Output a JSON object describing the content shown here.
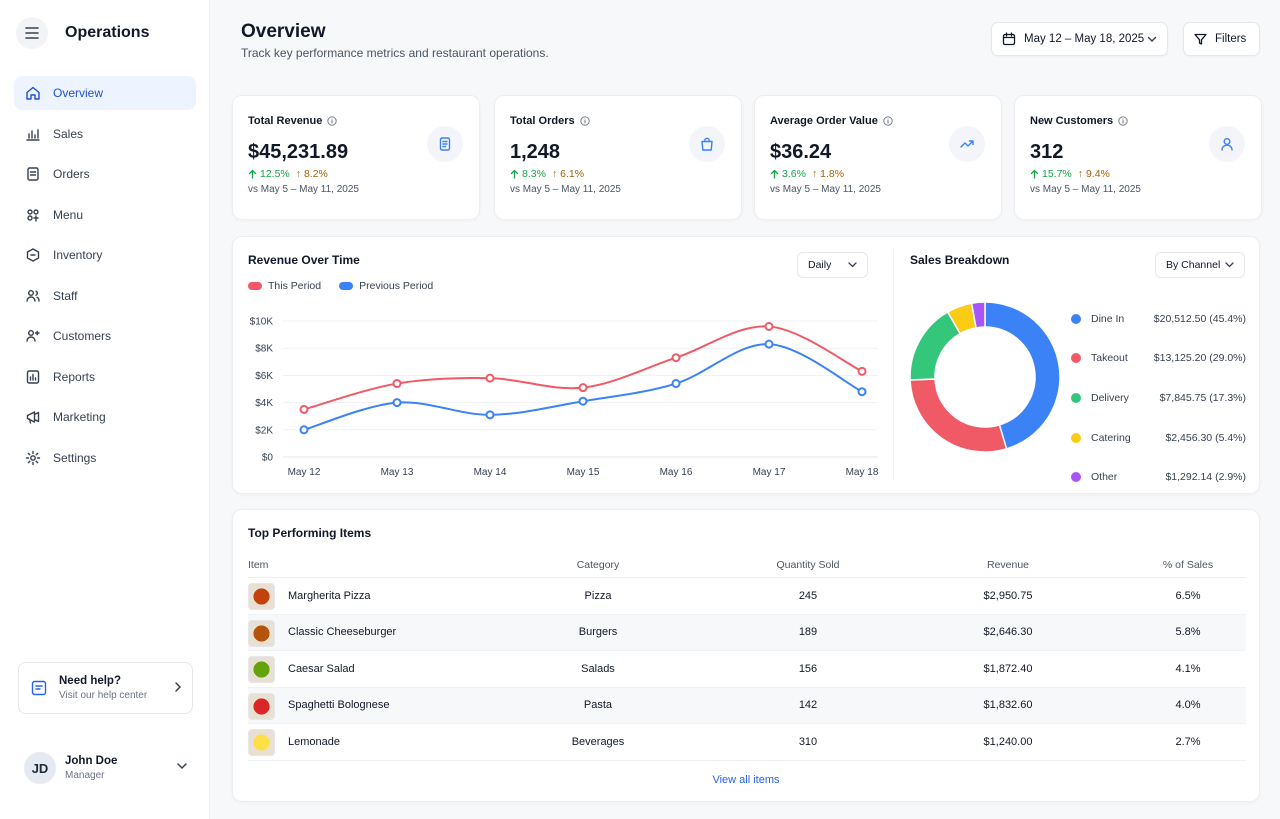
{
  "app": {
    "title": "Operations"
  },
  "nav": {
    "items": [
      {
        "label": "Overview",
        "icon": "home-icon",
        "active": true
      },
      {
        "label": "Sales",
        "icon": "bar-chart-icon"
      },
      {
        "label": "Orders",
        "icon": "document-icon"
      },
      {
        "label": "Menu",
        "icon": "utensils-icon"
      },
      {
        "label": "Inventory",
        "icon": "box-icon"
      },
      {
        "label": "Staff",
        "icon": "users-icon"
      },
      {
        "label": "Customers",
        "icon": "customers-icon"
      },
      {
        "label": "Reports",
        "icon": "report-icon"
      },
      {
        "label": "Marketing",
        "icon": "megaphone-icon"
      },
      {
        "label": "Settings",
        "icon": "gear-icon"
      }
    ]
  },
  "help": {
    "title": "Need help?",
    "subtitle": "Visit our help center"
  },
  "user": {
    "initials": "JD",
    "name": "John Doe",
    "role": "Manager"
  },
  "header": {
    "title": "Overview",
    "subtitle": "Track key performance metrics and restaurant operations.",
    "date_range": "May 12 – May 18, 2025",
    "filters_label": "Filters"
  },
  "kpis": [
    {
      "label": "Total Revenue",
      "value": "$45,231.89",
      "delta": "12.5%",
      "prev_delta": "8.2%",
      "period": "vs May 5 – May 11, 2025",
      "icon": "receipt-icon"
    },
    {
      "label": "Total Orders",
      "value": "1,248",
      "delta": "8.3%",
      "prev_delta": "6.1%",
      "period": "vs May 5 – May 11, 2025",
      "icon": "shopping-bag-icon"
    },
    {
      "label": "Average Order Value",
      "value": "$36.24",
      "delta": "3.6%",
      "prev_delta": "1.8%",
      "period": "vs May 5 – May 11, 2025",
      "icon": "trend-up-icon"
    },
    {
      "label": "New Customers",
      "value": "312",
      "delta": "15.7%",
      "prev_delta": "9.4%",
      "period": "vs May 5 – May 11, 2025",
      "icon": "user-icon"
    }
  ],
  "revenue": {
    "title": "Revenue Over Time",
    "granularity": "Daily"
  },
  "breakdown": {
    "title": "Sales Breakdown",
    "mode": "By Channel",
    "items": [
      {
        "name": "Dine In",
        "value": "$20,512.50 (45.4%)",
        "color": "#3b82f6"
      },
      {
        "name": "Takeout",
        "value": "$13,125.20 (29.0%)",
        "color": "#f05a67"
      },
      {
        "name": "Delivery",
        "value": "$7,845.75 (17.3%)",
        "color": "#34c77b"
      },
      {
        "name": "Catering",
        "value": "$2,456.30 (5.4%)",
        "color": "#facc15"
      },
      {
        "name": "Other",
        "value": "$1,292.14 (2.9%)",
        "color": "#a855f7"
      }
    ]
  },
  "table": {
    "title": "Top Performing Items",
    "headers": {
      "item": "Item",
      "category": "Category",
      "qty": "Quantity Sold",
      "revenue": "Revenue",
      "pct": "% of Sales"
    },
    "rows": [
      {
        "item": "Margherita Pizza",
        "category": "Pizza",
        "qty": "245",
        "revenue": "$2,950.75",
        "pct": "6.5%",
        "thumb": "#c2410c"
      },
      {
        "item": "Classic Cheeseburger",
        "category": "Burgers",
        "qty": "189",
        "revenue": "$2,646.30",
        "pct": "5.8%",
        "thumb": "#b45309"
      },
      {
        "item": "Caesar Salad",
        "category": "Salads",
        "qty": "156",
        "revenue": "$1,872.40",
        "pct": "4.1%",
        "thumb": "#65a30d"
      },
      {
        "item": "Spaghetti Bolognese",
        "category": "Pasta",
        "qty": "142",
        "revenue": "$1,832.60",
        "pct": "4.0%",
        "thumb": "#dc2626"
      },
      {
        "item": "Lemonade",
        "category": "Beverages",
        "qty": "310",
        "revenue": "$1,240.00",
        "pct": "2.7%",
        "thumb": "#fde047"
      }
    ],
    "view_all": "View all items"
  },
  "chart_data": [
    {
      "type": "line",
      "title": "Revenue Over Time",
      "x": [
        "May 12",
        "May 13",
        "May 14",
        "May 15",
        "May 16",
        "May 17",
        "May 18"
      ],
      "series": [
        {
          "name": "This Period",
          "color": "#f05a67",
          "values": [
            3500,
            5400,
            5800,
            5100,
            7300,
            9600,
            6300
          ]
        },
        {
          "name": "Previous Period",
          "color": "#3b82f6",
          "values": [
            2000,
            4000,
            3100,
            4100,
            5400,
            8300,
            4800
          ]
        }
      ],
      "y_ticks": [
        "$0",
        "$2K",
        "$4K",
        "$6K",
        "$8K",
        "$10K"
      ],
      "ylim": [
        0,
        10000
      ],
      "grid": true,
      "legend": "top-left"
    },
    {
      "type": "pie",
      "title": "Sales Breakdown",
      "labels": [
        "Dine In",
        "Takeout",
        "Delivery",
        "Catering",
        "Other"
      ],
      "values": [
        20512.5,
        13125.2,
        7845.75,
        2456.3,
        1292.14
      ],
      "colors": [
        "#3b82f6",
        "#f05a67",
        "#34c77b",
        "#facc15",
        "#a855f7"
      ]
    }
  ]
}
